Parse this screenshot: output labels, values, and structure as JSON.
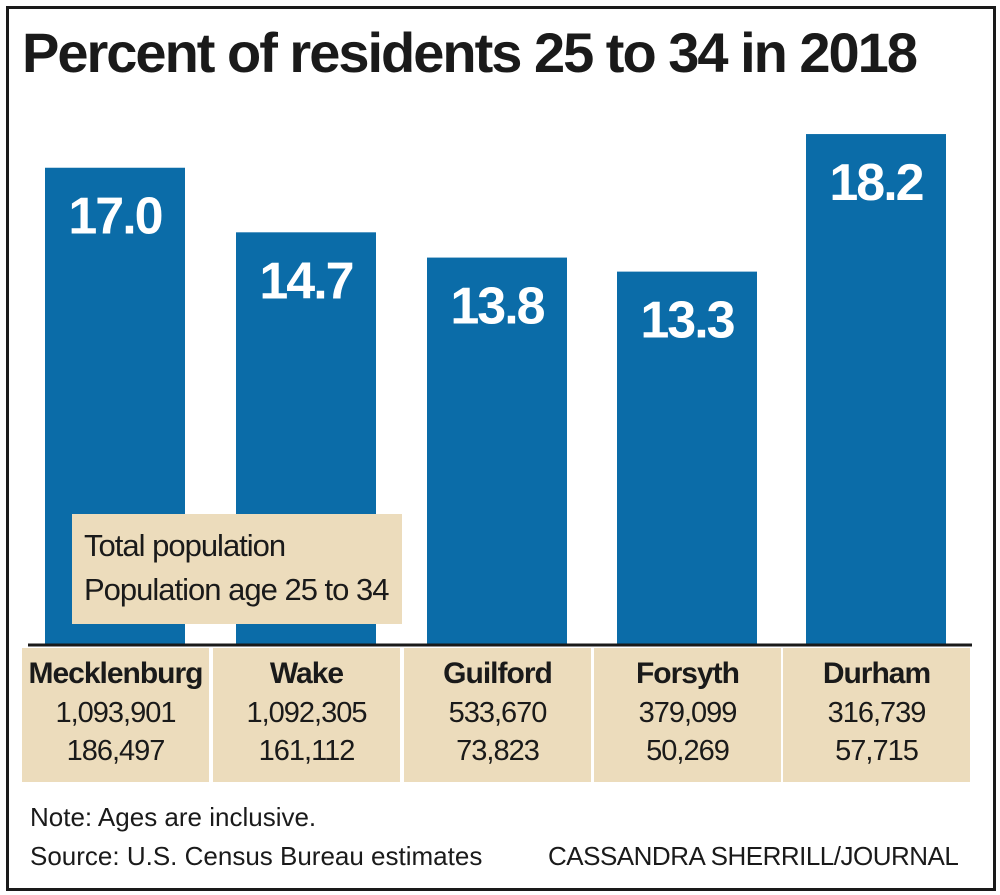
{
  "chart_data": {
    "type": "bar",
    "title": "Percent of residents 25 to 34 in 2018",
    "categories": [
      "Mecklenburg",
      "Wake",
      "Guilford",
      "Forsyth",
      "Durham"
    ],
    "values": [
      17.0,
      14.7,
      13.8,
      13.3,
      18.2
    ],
    "value_labels": [
      "17.0",
      "14.7",
      "13.8",
      "13.3",
      "18.2"
    ],
    "total_population": [
      "1,093,901",
      "1,092,305",
      "533,670",
      "379,099",
      "316,739"
    ],
    "population_25_34": [
      "186,497",
      "161,112",
      "73,823",
      "50,269",
      "57,715"
    ],
    "ylim": [
      0,
      18.95
    ],
    "xlabel": "",
    "ylabel": "",
    "bar_color": "#0b6ca8",
    "legend": {
      "line1": "Total population",
      "line2": "Population age 25 to 34"
    }
  },
  "note": "Note: Ages are inclusive.",
  "source": "Source: U.S. Census Bureau estimates",
  "credit": "CASSANDRA SHERRILL/JOURNAL",
  "colors": {
    "bar": "#0b6ca8",
    "legend_bg": "#ecdcbc",
    "text": "#1a1a1a"
  }
}
